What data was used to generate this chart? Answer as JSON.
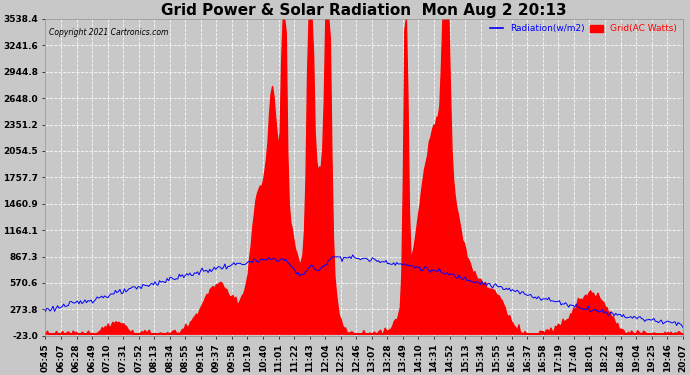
{
  "title": "Grid Power & Solar Radiation  Mon Aug 2 20:13",
  "copyright": "Copyright 2021 Cartronics.com",
  "legend_radiation": "Radiation(w/m2)",
  "legend_grid": "Grid(AC Watts)",
  "ylabel_values": [
    3538.4,
    3241.6,
    2944.8,
    2648.0,
    2351.2,
    2054.5,
    1757.7,
    1460.9,
    1164.1,
    867.3,
    570.6,
    273.8,
    -23.0
  ],
  "ymin": -23.0,
  "ymax": 3538.4,
  "background_color": "#c8c8c8",
  "plot_background": "#c8c8c8",
  "grid_color": "#ffffff",
  "radiation_color": "#0000ff",
  "grid_power_color": "#ff0000",
  "fill_color": "#ff0000",
  "title_fontsize": 11,
  "tick_fontsize": 6.5
}
